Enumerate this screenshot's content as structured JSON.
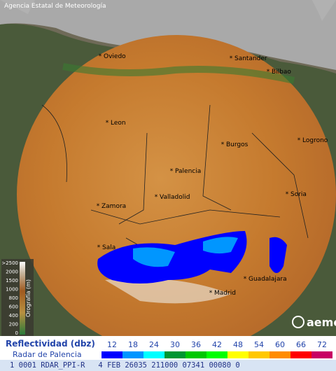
{
  "header": {
    "agency": "Agencia Estatal de Meteorología"
  },
  "cities": [
    "Oviedo",
    "Santander",
    "Bilbao",
    "Leon",
    "Burgos",
    "Logrono",
    "Palencia",
    "Valladolid",
    "Soria",
    "Zamora",
    "Sala",
    "Guadalajara",
    "Madrid"
  ],
  "elevation_legend": {
    "title": "Orografía (m)",
    "labels": [
      ">2500",
      2000,
      1500,
      1000,
      800,
      600,
      400,
      200,
      0
    ]
  },
  "reflectivity_legend": {
    "title": "Reflectividad (dbz)",
    "subtitle": "Radar de Palencia",
    "items": [
      {
        "value": 12,
        "color": "#0000ff"
      },
      {
        "value": 18,
        "color": "#0096ff"
      },
      {
        "value": 24,
        "color": "#00ffff"
      },
      {
        "value": 30,
        "color": "#009632"
      },
      {
        "value": 36,
        "color": "#00c800"
      },
      {
        "value": 42,
        "color": "#00ff00"
      },
      {
        "value": 48,
        "color": "#ffff00"
      },
      {
        "value": 54,
        "color": "#ffc800"
      },
      {
        "value": 60,
        "color": "#ff8c00"
      },
      {
        "value": 66,
        "color": "#ff0000"
      },
      {
        "value": 72,
        "color": "#c80064"
      }
    ]
  },
  "logo": "aemet",
  "status_bar": "1 0001 RDAR_PPI-R   4 FEB 26035 211000 07341 00080 0"
}
